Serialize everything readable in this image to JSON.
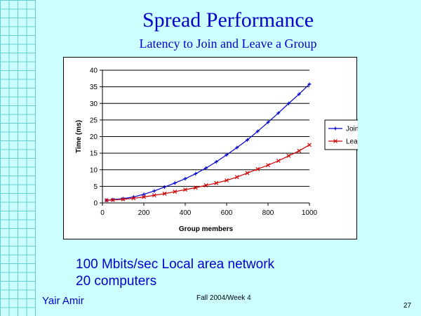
{
  "slide": {
    "title": "Spread Performance",
    "subtitle": "Latency to Join and Leave a Group",
    "notes": [
      "100 Mbits/sec  Local area network",
      "20 computers"
    ],
    "footer_left": "Yair Amir",
    "footer_center": "Fall 2004/Week 4",
    "page_number": "27"
  },
  "colors": {
    "background": "#ccffff",
    "title": "#0000cc",
    "join": "#0000cc",
    "leave": "#cc0000"
  },
  "chart_data": {
    "type": "line",
    "title": "",
    "xlabel": "Group members",
    "ylabel": "Time (ms)",
    "xlim": [
      0,
      1000
    ],
    "ylim": [
      0,
      40
    ],
    "xticks": [
      0,
      200,
      400,
      600,
      800,
      1000
    ],
    "yticks": [
      0,
      5,
      10,
      15,
      20,
      25,
      30,
      35,
      40
    ],
    "grid": "horizontal",
    "legend_position": "right",
    "x": [
      20,
      50,
      100,
      150,
      200,
      250,
      300,
      350,
      400,
      450,
      500,
      550,
      600,
      650,
      700,
      750,
      800,
      850,
      900,
      950,
      1000
    ],
    "series": [
      {
        "name": "Join",
        "marker": "+",
        "values": [
          0.8,
          1.0,
          1.3,
          1.8,
          2.6,
          3.6,
          4.8,
          6.0,
          7.3,
          8.8,
          10.5,
          12.4,
          14.5,
          16.7,
          19.0,
          21.6,
          24.3,
          27.1,
          30.0,
          32.8,
          35.8
        ]
      },
      {
        "name": "Leave",
        "marker": "x",
        "values": [
          0.8,
          0.9,
          1.1,
          1.4,
          1.8,
          2.3,
          2.8,
          3.4,
          4.0,
          4.6,
          5.3,
          6.0,
          6.8,
          7.8,
          9.0,
          10.2,
          11.4,
          12.7,
          14.2,
          15.7,
          17.5
        ]
      }
    ]
  }
}
